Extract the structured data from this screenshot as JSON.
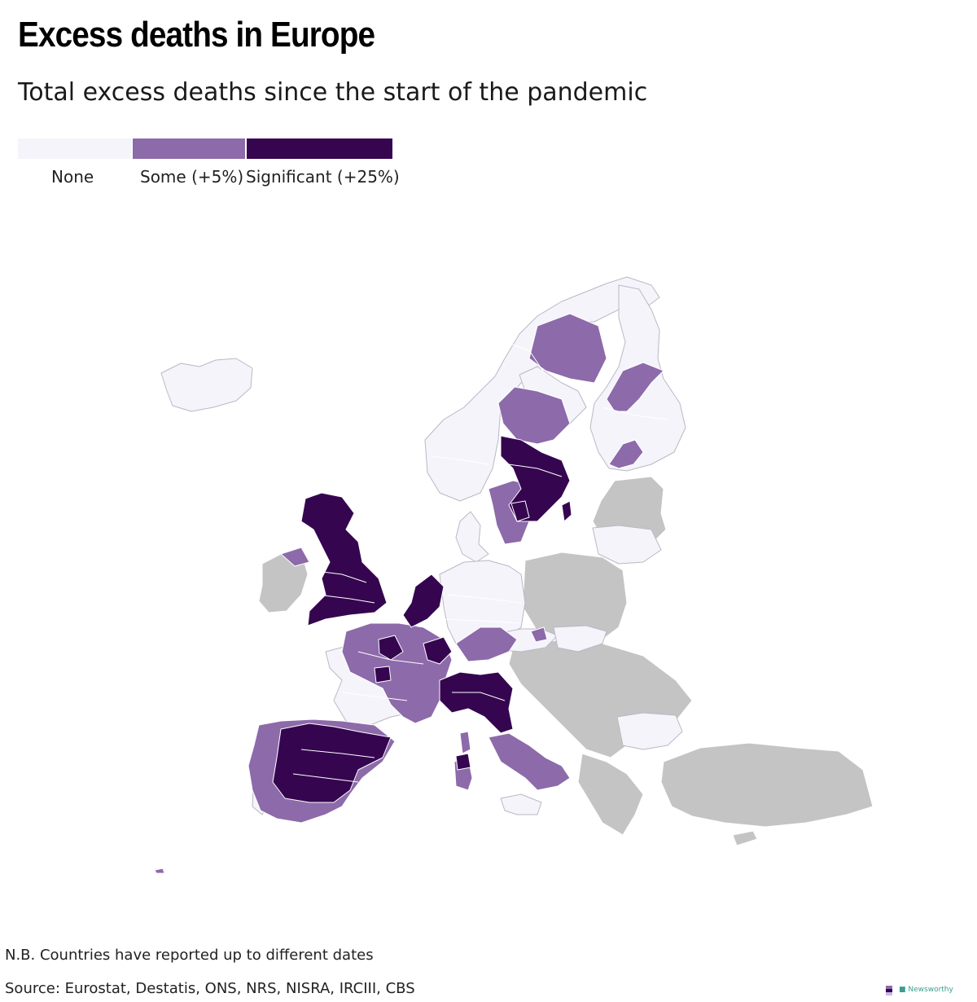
{
  "title": "Excess deaths in Europe",
  "subtitle": "Total excess deaths since the start of the pandemic",
  "legend": [
    {
      "label": "None",
      "color": "#f5f4fb"
    },
    {
      "label": "Some (+5%)",
      "color": "#8d6aaa"
    },
    {
      "label": "Significant (+25%)",
      "color": "#35064f"
    }
  ],
  "no_data_color": "#c4c4c4",
  "border_color": "#ffffff",
  "outline_color": "#b9b9c4",
  "note": "N.B. Countries have reported up to different dates",
  "source": "Source: Eurostat, Destatis, ONS, NRS, NISRA, IRCIII, CBS",
  "logos": {
    "edjnet_icon": "edjnet-logo-icon",
    "newsworthy": "Newsworthy",
    "newsworthy_icon": "newsworthy-logo-icon"
  }
}
